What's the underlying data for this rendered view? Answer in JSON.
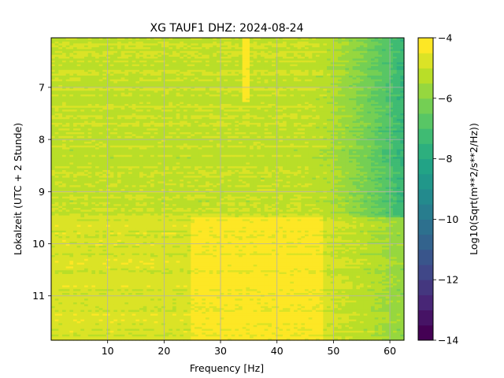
{
  "chart_data": {
    "type": "heatmap",
    "title": "XG TAUF1  DHZ: 2024-08-24",
    "xlabel": "Frequency [Hz]",
    "ylabel": "Lokalzeit (UTC + 2 Stunde)",
    "xlim": [
      0,
      62.5
    ],
    "ylim": [
      11.85,
      6.05
    ],
    "y_inverted": true,
    "grid": true,
    "x_ticks": [
      10,
      20,
      30,
      40,
      50,
      60
    ],
    "y_ticks": [
      7,
      8,
      9,
      10,
      11
    ],
    "colorbar": {
      "label": "Log10(Sqrt(m**2/s**2/Hz))",
      "range": [
        -14,
        -4
      ],
      "ticks": [
        -4,
        -6,
        -8,
        -10,
        -12,
        -14
      ],
      "colormap": "viridis",
      "levels": 20
    },
    "regions": [
      {
        "name": "upper block",
        "y": [
          6.05,
          9.5
        ],
        "typical_value_low_freq": -5.1,
        "typical_value_high_freq": -7.5
      },
      {
        "name": "lower block",
        "y": [
          9.5,
          11.85
        ],
        "typical_value_low_freq": -4.8,
        "typical_value_high_freq": -5.8
      },
      {
        "name": "bright band",
        "x": [
          25,
          48
        ],
        "y": [
          9.5,
          11.85
        ],
        "value": -4.3
      },
      {
        "name": "line at 34.5 Hz",
        "x": [
          34,
          35
        ],
        "y": [
          6.05,
          7.3
        ],
        "value": -4.2
      }
    ]
  }
}
